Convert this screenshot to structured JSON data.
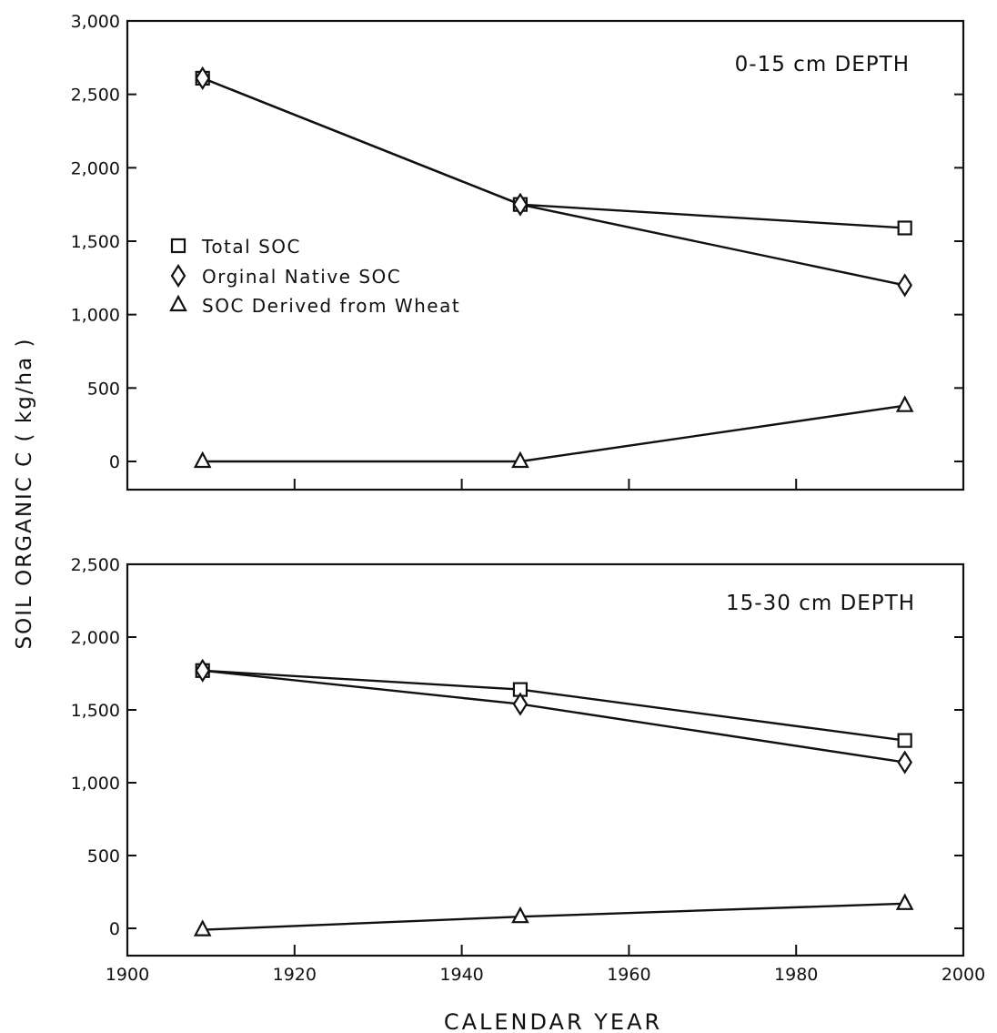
{
  "figure": {
    "ylabel": "SOIL ORGANIC C ( kg/ha )",
    "xlabel": "CALENDAR YEAR"
  },
  "legend": [
    {
      "name": "Total SOC",
      "marker": "square"
    },
    {
      "name": "Orginal Native SOC",
      "marker": "diamond"
    },
    {
      "name": "SOC Derived from Wheat",
      "marker": "triangle"
    }
  ],
  "chart_data": [
    {
      "type": "line",
      "panel_label": "0-15 cm DEPTH",
      "xlim": [
        1900,
        2000
      ],
      "ylim": [
        -200,
        3000
      ],
      "x_ticks": [
        1900,
        1920,
        1940,
        1960,
        1980,
        2000
      ],
      "x_tick_labels_shown": false,
      "y_ticks": [
        0,
        500,
        1000,
        1500,
        2000,
        2500,
        3000
      ],
      "y_tick_labels": [
        "0",
        "500",
        "1,000",
        "1,500",
        "2,000",
        "2,500",
        "3,000"
      ],
      "x": [
        1909,
        1947,
        1993
      ],
      "series": [
        {
          "name": "Total SOC",
          "marker": "square",
          "values": [
            2610,
            1750,
            1590
          ]
        },
        {
          "name": "Orginal Native SOC",
          "marker": "diamond",
          "values": [
            2610,
            1750,
            1200
          ]
        },
        {
          "name": "SOC Derived from Wheat",
          "marker": "triangle",
          "values": [
            0,
            0,
            380
          ]
        }
      ],
      "legend_position": "middle-left"
    },
    {
      "type": "line",
      "panel_label": "15-30 cm DEPTH",
      "xlim": [
        1900,
        2000
      ],
      "ylim": [
        -200,
        2500
      ],
      "x_ticks": [
        1900,
        1920,
        1940,
        1960,
        1980,
        2000
      ],
      "x_tick_labels_shown": true,
      "x_tick_labels": [
        "1900",
        "1920",
        "1940",
        "1960",
        "1980",
        "2000"
      ],
      "y_ticks": [
        0,
        500,
        1000,
        1500,
        2000,
        2500
      ],
      "y_tick_labels": [
        "0",
        "500",
        "1,000",
        "1,500",
        "2,000",
        "2,500"
      ],
      "x": [
        1909,
        1947,
        1993
      ],
      "series": [
        {
          "name": "Total SOC",
          "marker": "square",
          "values": [
            1770,
            1640,
            1290
          ]
        },
        {
          "name": "Orginal Native SOC",
          "marker": "diamond",
          "values": [
            1770,
            1540,
            1140
          ]
        },
        {
          "name": "SOC Derived from Wheat",
          "marker": "triangle",
          "values": [
            -10,
            80,
            170
          ]
        }
      ]
    }
  ]
}
